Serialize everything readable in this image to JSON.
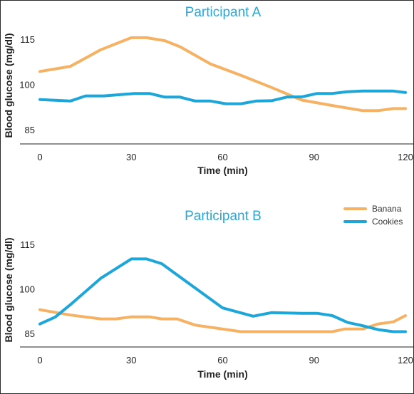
{
  "colors": {
    "banana": "#f5b264",
    "cookies": "#1ea6d8",
    "title": "#29a8d8"
  },
  "legend": {
    "position": "top-right",
    "items": [
      {
        "label": "Banana",
        "color": "#f5b264"
      },
      {
        "label": "Cookies",
        "color": "#1ea6d8"
      }
    ]
  },
  "chart_data": [
    {
      "type": "line",
      "title": "Participant A",
      "xlabel": "Time (min)",
      "ylabel": "Blood glucose (mg/dl)",
      "xlim": [
        0,
        120
      ],
      "ylim": [
        80,
        120
      ],
      "xticks": [
        "0",
        "30",
        "60",
        "90",
        "120"
      ],
      "yticks": [
        "85",
        "100",
        "115"
      ],
      "grid": false,
      "series": [
        {
          "name": "Banana",
          "color": "#f5b264",
          "x": [
            0,
            10,
            20,
            30,
            35,
            41,
            46,
            56,
            66,
            76,
            86,
            96,
            106,
            111,
            116,
            120
          ],
          "y": [
            104.3,
            106.0,
            111.5,
            115.5,
            115.5,
            114.5,
            112.5,
            106.8,
            103.0,
            99.0,
            94.8,
            93.0,
            91.3,
            91.3,
            92.0,
            92.0
          ]
        },
        {
          "name": "Cookies",
          "color": "#1ea6d8",
          "x": [
            0,
            10,
            15,
            21,
            31,
            36,
            41,
            46,
            51,
            56,
            61,
            66,
            71,
            76,
            81,
            86,
            91,
            96,
            101,
            106,
            111,
            116,
            120
          ],
          "y": [
            95.0,
            94.5,
            96.2,
            96.2,
            97.0,
            97.0,
            95.8,
            95.8,
            94.5,
            94.5,
            93.6,
            93.6,
            94.5,
            94.6,
            95.8,
            95.9,
            97.0,
            97.0,
            97.6,
            97.8,
            97.8,
            97.8,
            97.3
          ]
        }
      ]
    },
    {
      "type": "line",
      "title": "Participant B",
      "xlabel": "Time (min)",
      "ylabel": "Blood glucose (mg/dl)",
      "xlim": [
        0,
        120
      ],
      "ylim": [
        80,
        120
      ],
      "xticks": [
        "0",
        "30",
        "60",
        "90",
        "120"
      ],
      "yticks": [
        "85",
        "100",
        "115"
      ],
      "grid": false,
      "series": [
        {
          "name": "Banana",
          "color": "#f5b264",
          "x": [
            0,
            10,
            20,
            25,
            30,
            36,
            40,
            45,
            51,
            66,
            81,
            96,
            100,
            106,
            111,
            116,
            120
          ],
          "y": [
            93.0,
            91.2,
            89.9,
            89.9,
            90.6,
            90.6,
            89.9,
            89.9,
            87.8,
            85.6,
            85.6,
            85.6,
            86.5,
            86.5,
            88.2,
            88.9,
            91.0
          ]
        },
        {
          "name": "Cookies",
          "color": "#1ea6d8",
          "x": [
            0,
            5,
            10,
            20,
            30,
            35,
            40,
            50,
            60,
            70,
            76,
            86,
            91,
            96,
            101,
            106,
            111,
            116,
            120
          ],
          "y": [
            88.2,
            90.5,
            94.7,
            103.6,
            110.1,
            110.1,
            108.5,
            101.0,
            93.6,
            90.8,
            92.0,
            91.8,
            91.8,
            91.0,
            88.7,
            87.6,
            86.3,
            85.6,
            85.6
          ]
        }
      ]
    }
  ]
}
